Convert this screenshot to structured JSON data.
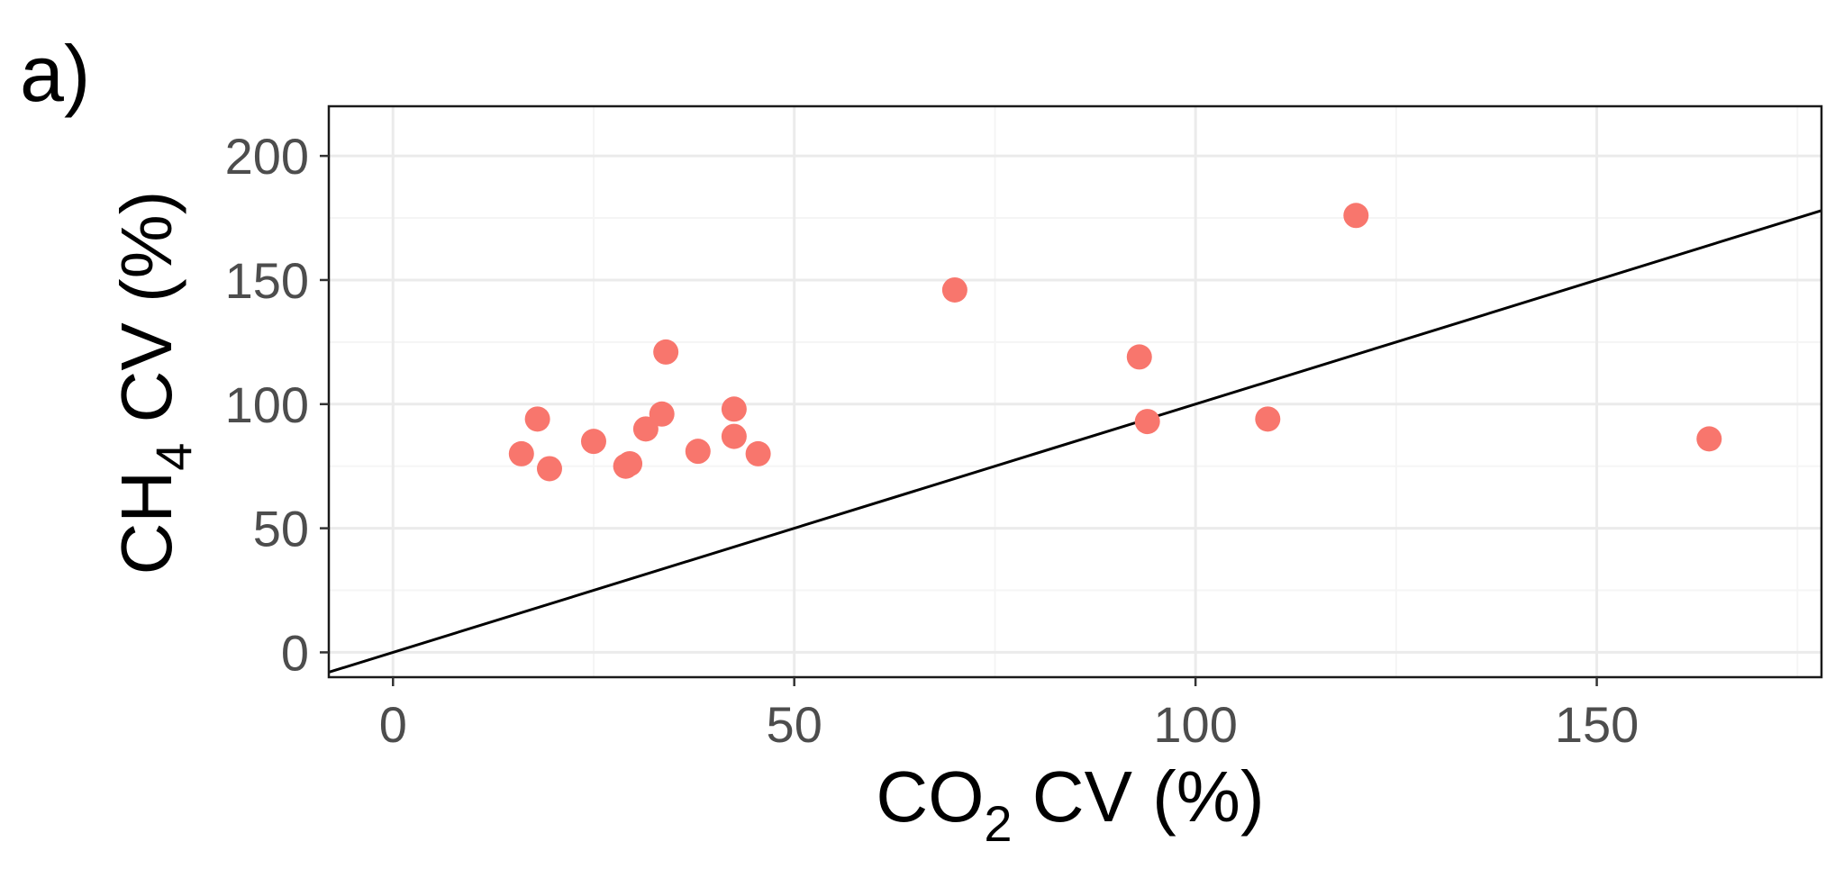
{
  "panel_label": "a)",
  "colors": {
    "point": "#F8766D",
    "grid_major": "#EBEBEB",
    "grid_minor": "#F5F5F5",
    "frame": "#1a1a1a",
    "line": "#000000"
  },
  "chart_data": {
    "type": "scatter",
    "xlabel": {
      "main": "CO",
      "sub": "2",
      "rest": " CV (%)"
    },
    "ylabel": {
      "main": "CH",
      "sub": "4",
      "rest": " CV (%)"
    },
    "xlim": [
      -8,
      178
    ],
    "ylim": [
      -10,
      220
    ],
    "x_ticks": [
      0,
      50,
      100,
      150
    ],
    "y_ticks": [
      0,
      50,
      100,
      150,
      200
    ],
    "grid": true,
    "reference_line": {
      "slope": 1,
      "intercept": 0
    },
    "points": [
      {
        "x": 16.0,
        "y": 80
      },
      {
        "x": 18.0,
        "y": 94
      },
      {
        "x": 19.5,
        "y": 74
      },
      {
        "x": 25.0,
        "y": 85
      },
      {
        "x": 29.0,
        "y": 75
      },
      {
        "x": 29.5,
        "y": 76
      },
      {
        "x": 31.5,
        "y": 90
      },
      {
        "x": 33.5,
        "y": 96
      },
      {
        "x": 34.0,
        "y": 121
      },
      {
        "x": 38.0,
        "y": 81
      },
      {
        "x": 42.5,
        "y": 98
      },
      {
        "x": 42.5,
        "y": 87
      },
      {
        "x": 45.5,
        "y": 80
      },
      {
        "x": 70.0,
        "y": 146
      },
      {
        "x": 93.0,
        "y": 119
      },
      {
        "x": 94.0,
        "y": 93
      },
      {
        "x": 109.0,
        "y": 94
      },
      {
        "x": 120.0,
        "y": 176
      },
      {
        "x": 164.0,
        "y": 86
      }
    ]
  }
}
